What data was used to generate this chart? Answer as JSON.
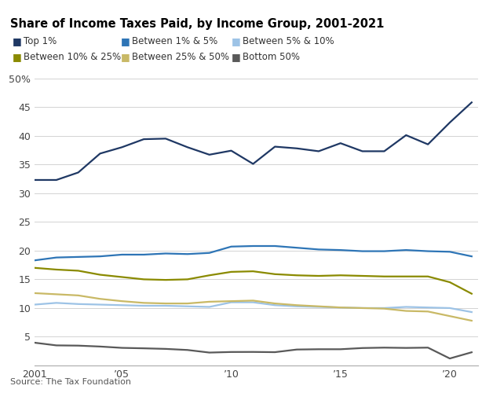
{
  "title": "Share of Income Taxes Paid, by Income Group, 2001-2021",
  "source": "Source: The Tax Foundation",
  "years": [
    2001,
    2002,
    2003,
    2004,
    2005,
    2006,
    2007,
    2008,
    2009,
    2010,
    2011,
    2012,
    2013,
    2014,
    2015,
    2016,
    2017,
    2018,
    2019,
    2020,
    2021
  ],
  "series": [
    {
      "label": "Top 1%",
      "color": "#1f3864",
      "linewidth": 1.6,
      "values": [
        32.3,
        32.3,
        33.6,
        36.9,
        38.0,
        39.4,
        39.5,
        38.0,
        36.7,
        37.4,
        35.1,
        38.1,
        37.8,
        37.3,
        38.7,
        37.3,
        37.3,
        40.1,
        38.5,
        42.3,
        45.8
      ]
    },
    {
      "label": "Between 1% & 5%",
      "color": "#2e75b6",
      "linewidth": 1.6,
      "values": [
        18.3,
        18.8,
        18.9,
        19.0,
        19.3,
        19.3,
        19.5,
        19.4,
        19.6,
        20.7,
        20.8,
        20.8,
        20.5,
        20.2,
        20.1,
        19.9,
        19.9,
        20.1,
        19.9,
        19.8,
        19.0
      ]
    },
    {
      "label": "Between 5% & 10%",
      "color": "#9dc3e6",
      "linewidth": 1.6,
      "values": [
        10.6,
        10.9,
        10.7,
        10.6,
        10.5,
        10.4,
        10.4,
        10.3,
        10.2,
        11.0,
        11.0,
        10.5,
        10.3,
        10.2,
        10.1,
        10.0,
        10.0,
        10.2,
        10.1,
        10.0,
        9.3
      ]
    },
    {
      "label": "Between 10% & 25%",
      "color": "#8a8a00",
      "linewidth": 1.6,
      "values": [
        17.0,
        16.7,
        16.5,
        15.8,
        15.4,
        15.0,
        14.9,
        15.0,
        15.7,
        16.3,
        16.4,
        15.9,
        15.7,
        15.6,
        15.7,
        15.6,
        15.5,
        15.5,
        15.5,
        14.5,
        12.5
      ]
    },
    {
      "label": "Between 25% & 50%",
      "color": "#c9b966",
      "linewidth": 1.6,
      "values": [
        12.6,
        12.4,
        12.2,
        11.6,
        11.2,
        10.9,
        10.8,
        10.8,
        11.1,
        11.2,
        11.3,
        10.8,
        10.5,
        10.3,
        10.1,
        10.0,
        9.9,
        9.5,
        9.4,
        8.6,
        7.8
      ]
    },
    {
      "label": "Bottom 50%",
      "color": "#595959",
      "linewidth": 1.6,
      "values": [
        3.97,
        3.5,
        3.46,
        3.3,
        3.07,
        2.99,
        2.89,
        2.7,
        2.25,
        2.35,
        2.36,
        2.32,
        2.78,
        2.83,
        2.83,
        3.04,
        3.11,
        3.06,
        3.11,
        1.22,
        2.3
      ]
    }
  ],
  "ylim": [
    0,
    52
  ],
  "yticks": [
    0,
    5,
    10,
    15,
    20,
    25,
    30,
    35,
    40,
    45,
    50
  ],
  "ytick_labels": [
    "",
    "5",
    "10",
    "15",
    "20",
    "25",
    "30",
    "35",
    "40",
    "45",
    "50%"
  ],
  "xtick_positions": [
    2001,
    2005,
    2010,
    2015,
    2020
  ],
  "xtick_labels": [
    "2001",
    "’05",
    "’10",
    "’15",
    "’20"
  ],
  "background_color": "#ffffff",
  "grid_color": "#d3d3d3",
  "legend_items": [
    {
      "label": "Top 1%",
      "color": "#1f3864"
    },
    {
      "label": "Between 1% & 5%",
      "color": "#2e75b6"
    },
    {
      "label": "Between 5% & 10%",
      "color": "#9dc3e6"
    },
    {
      "label": "Between 10% & 25%",
      "color": "#8a8a00"
    },
    {
      "label": "Between 25% & 50%",
      "color": "#c9b966"
    },
    {
      "label": "Bottom 50%",
      "color": "#595959"
    }
  ]
}
